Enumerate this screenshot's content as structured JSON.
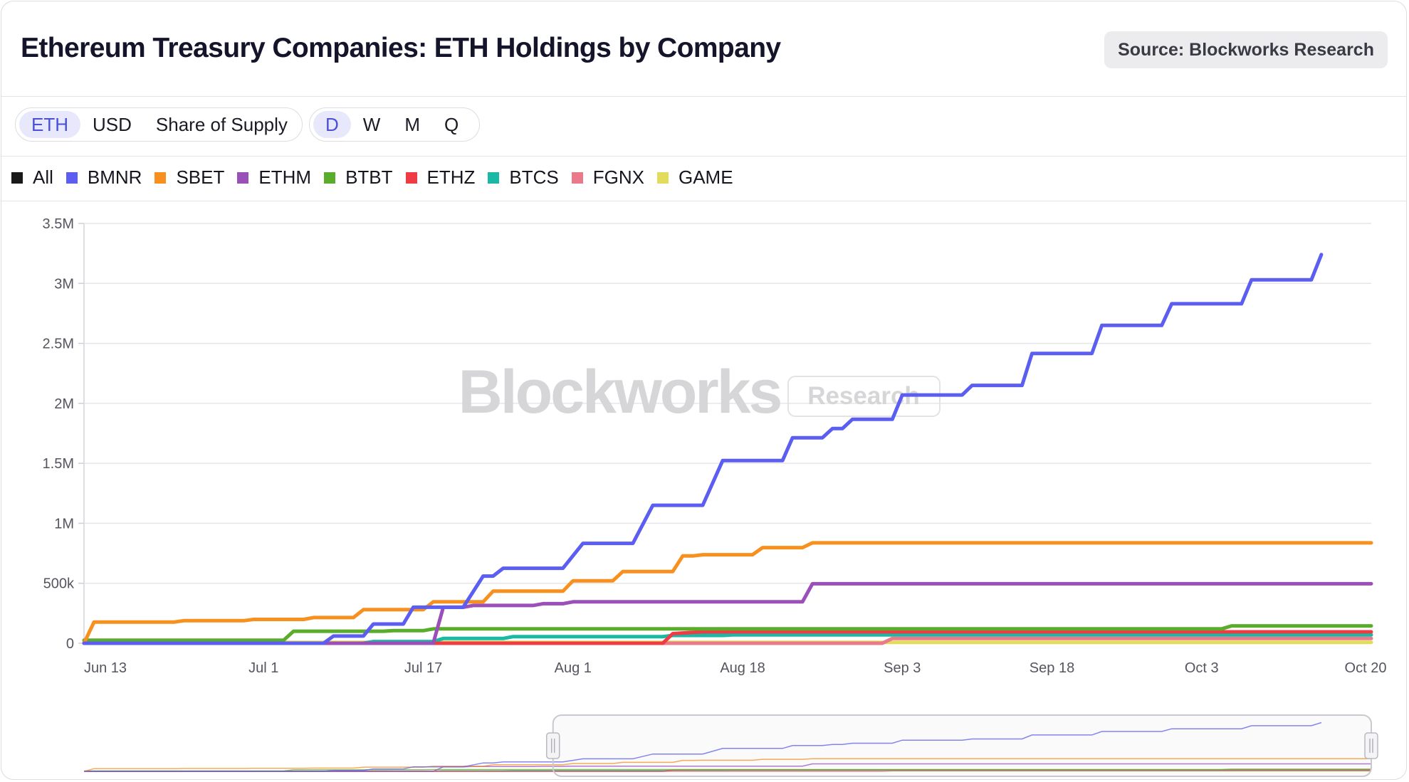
{
  "header": {
    "title": "Ethereum Treasury Companies: ETH Holdings by Company",
    "source": "Source: Blockworks Research"
  },
  "controls": {
    "units": [
      {
        "label": "ETH",
        "active": true
      },
      {
        "label": "USD",
        "active": false
      },
      {
        "label": "Share of Supply",
        "active": false
      }
    ],
    "periods": [
      {
        "label": "D",
        "active": true
      },
      {
        "label": "W",
        "active": false
      },
      {
        "label": "M",
        "active": false
      },
      {
        "label": "Q",
        "active": false
      }
    ]
  },
  "legend": [
    {
      "label": "All",
      "color": "#1a1a1a"
    },
    {
      "label": "BMNR",
      "color": "#5b5ef0"
    },
    {
      "label": "SBET",
      "color": "#f7901e"
    },
    {
      "label": "ETHM",
      "color": "#9b4fb8"
    },
    {
      "label": "BTBT",
      "color": "#5aad2a"
    },
    {
      "label": "ETHZ",
      "color": "#ee3b44"
    },
    {
      "label": "BTCS",
      "color": "#1ab9a6"
    },
    {
      "label": "FGNX",
      "color": "#ea7a8a"
    },
    {
      "label": "GAME",
      "color": "#e3dc5a"
    }
  ],
  "watermark": {
    "brand": "Blockworks",
    "tag": "Research"
  },
  "chart_data": {
    "type": "line",
    "title": "Ethereum Treasury Companies: ETH Holdings by Company",
    "x_unit": "days since Jun 13",
    "xlim": [
      0,
      129
    ],
    "ylim": [
      0,
      3500000
    ],
    "grid": true,
    "legend_position": "top-left",
    "y_ticks": [
      {
        "value": 0,
        "label": "0"
      },
      {
        "value": 500000,
        "label": "500k"
      },
      {
        "value": 1000000,
        "label": "1M"
      },
      {
        "value": 1500000,
        "label": "1.5M"
      },
      {
        "value": 2000000,
        "label": "2M"
      },
      {
        "value": 2500000,
        "label": "2.5M"
      },
      {
        "value": 3000000,
        "label": "3M"
      },
      {
        "value": 3500000,
        "label": "3.5M"
      }
    ],
    "x_ticks": [
      {
        "value": 0,
        "label": "Jun 13"
      },
      {
        "value": 18,
        "label": "Jul 1"
      },
      {
        "value": 34,
        "label": "Jul 17"
      },
      {
        "value": 49,
        "label": "Aug 1"
      },
      {
        "value": 66,
        "label": "Aug 18"
      },
      {
        "value": 82,
        "label": "Sep 3"
      },
      {
        "value": 97,
        "label": "Sep 18"
      },
      {
        "value": 112,
        "label": "Oct 3"
      },
      {
        "value": 129,
        "label": "Oct 20"
      }
    ],
    "navigator": {
      "window_start": 47,
      "window_end": 129
    },
    "series": [
      {
        "name": "BMNR",
        "color": "#5b5ef0",
        "points": [
          [
            0,
            0
          ],
          [
            24,
            0
          ],
          [
            25,
            60000
          ],
          [
            28,
            60000
          ],
          [
            29,
            160000
          ],
          [
            32,
            160000
          ],
          [
            33,
            300000
          ],
          [
            38,
            300000
          ],
          [
            40,
            560000
          ],
          [
            41,
            560000
          ],
          [
            42,
            625000
          ],
          [
            48,
            625000
          ],
          [
            50,
            833000
          ],
          [
            55,
            833000
          ],
          [
            57,
            1150000
          ],
          [
            62,
            1150000
          ],
          [
            64,
            1523000
          ],
          [
            70,
            1523000
          ],
          [
            71,
            1713000
          ],
          [
            74,
            1713000
          ],
          [
            75,
            1790000
          ],
          [
            76,
            1790000
          ],
          [
            77,
            1867000
          ],
          [
            81,
            1867000
          ],
          [
            82,
            2070000
          ],
          [
            88,
            2070000
          ],
          [
            89,
            2150000
          ],
          [
            94,
            2150000
          ],
          [
            95,
            2416000
          ],
          [
            101,
            2416000
          ],
          [
            102,
            2650000
          ],
          [
            108,
            2650000
          ],
          [
            109,
            2830000
          ],
          [
            116,
            2830000
          ],
          [
            117,
            3030000
          ],
          [
            123,
            3030000
          ],
          [
            124,
            3240000
          ]
        ]
      },
      {
        "name": "SBET",
        "color": "#f7901e",
        "points": [
          [
            0,
            0
          ],
          [
            1,
            176000
          ],
          [
            9,
            176000
          ],
          [
            10,
            188000
          ],
          [
            16,
            188000
          ],
          [
            17,
            199000
          ],
          [
            22,
            199000
          ],
          [
            23,
            214000
          ],
          [
            27,
            214000
          ],
          [
            28,
            280000
          ],
          [
            34,
            280000
          ],
          [
            35,
            345000
          ],
          [
            40,
            345000
          ],
          [
            41,
            434000
          ],
          [
            48,
            434000
          ],
          [
            49,
            521000
          ],
          [
            53,
            521000
          ],
          [
            54,
            598000
          ],
          [
            59,
            598000
          ],
          [
            60,
            728000
          ],
          [
            61,
            728000
          ],
          [
            62,
            738000
          ],
          [
            67,
            738000
          ],
          [
            68,
            797000
          ],
          [
            72,
            797000
          ],
          [
            73,
            837000
          ],
          [
            129,
            837000
          ]
        ]
      },
      {
        "name": "ETHM",
        "color": "#9b4fb8",
        "points": [
          [
            0,
            0
          ],
          [
            35,
            0
          ],
          [
            36,
            300000
          ],
          [
            38,
            300000
          ],
          [
            39,
            315000
          ],
          [
            45,
            315000
          ],
          [
            46,
            330000
          ],
          [
            48,
            330000
          ],
          [
            49,
            345000
          ],
          [
            72,
            345000
          ],
          [
            73,
            496000
          ],
          [
            129,
            496000
          ]
        ]
      },
      {
        "name": "BTBT",
        "color": "#5aad2a",
        "points": [
          [
            0,
            25000
          ],
          [
            20,
            25000
          ],
          [
            21,
            100000
          ],
          [
            30,
            100000
          ],
          [
            31,
            105000
          ],
          [
            34,
            105000
          ],
          [
            35,
            120000
          ],
          [
            114,
            120000
          ],
          [
            115,
            145000
          ],
          [
            129,
            145000
          ]
        ]
      },
      {
        "name": "ETHZ",
        "color": "#ee3b44",
        "points": [
          [
            0,
            0
          ],
          [
            58,
            0
          ],
          [
            59,
            80000
          ],
          [
            61,
            90000
          ],
          [
            62,
            95000
          ],
          [
            129,
            95000
          ]
        ]
      },
      {
        "name": "BTCS",
        "color": "#1ab9a6",
        "points": [
          [
            0,
            0
          ],
          [
            28,
            0
          ],
          [
            29,
            14000
          ],
          [
            35,
            14000
          ],
          [
            36,
            40000
          ],
          [
            42,
            40000
          ],
          [
            43,
            55000
          ],
          [
            58,
            55000
          ],
          [
            59,
            65000
          ],
          [
            64,
            65000
          ],
          [
            65,
            70000
          ],
          [
            129,
            70000
          ]
        ]
      },
      {
        "name": "FGNX",
        "color": "#ea7a8a",
        "points": [
          [
            0,
            0
          ],
          [
            80,
            0
          ],
          [
            81,
            40000
          ],
          [
            129,
            40000
          ]
        ]
      },
      {
        "name": "GAME",
        "color": "#e3dc5a",
        "points": [
          [
            0,
            8000
          ],
          [
            129,
            8000
          ]
        ]
      }
    ]
  }
}
